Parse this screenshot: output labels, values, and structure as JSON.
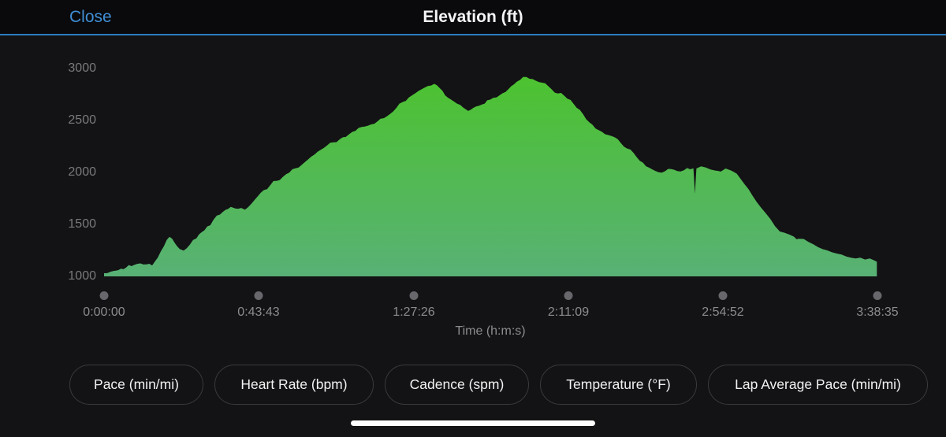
{
  "header": {
    "close_label": "Close",
    "title": "Elevation (ft)"
  },
  "buttons": [
    "Pace (min/mi)",
    "Heart Rate (bpm)",
    "Cadence (spm)",
    "Temperature (°F)",
    "Lap Average Pace (min/mi)"
  ],
  "chart_data": {
    "type": "area",
    "title": "Elevation (ft)",
    "xlabel": "Time (h:m:s)",
    "ylabel": "Elevation (ft)",
    "x_unit": "seconds",
    "xlim": [
      0,
      13115
    ],
    "ylim": [
      1000,
      3000
    ],
    "y_ticks": [
      1000,
      1500,
      2000,
      2500,
      3000
    ],
    "y_tick_labels": [
      "3000",
      "2500",
      "2000",
      "1500",
      "1000"
    ],
    "x_ticks_seconds": [
      0,
      2623,
      5246,
      7869,
      10492,
      13115
    ],
    "x_tick_labels": [
      "0:00:00",
      "0:43:43",
      "1:27:26",
      "2:11:09",
      "2:54:52",
      "3:38:35"
    ],
    "grid": false,
    "legend": false,
    "gradient": {
      "top": "#4cc32d",
      "bottom": "#58b175"
    },
    "points": [
      [
        0,
        1030
      ],
      [
        110,
        1045
      ],
      [
        240,
        1060
      ],
      [
        375,
        1085
      ],
      [
        510,
        1110
      ],
      [
        615,
        1125
      ],
      [
        720,
        1115
      ],
      [
        815,
        1105
      ],
      [
        910,
        1180
      ],
      [
        1015,
        1290
      ],
      [
        1110,
        1380
      ],
      [
        1200,
        1320
      ],
      [
        1285,
        1262
      ],
      [
        1350,
        1248
      ],
      [
        1455,
        1305
      ],
      [
        1565,
        1365
      ],
      [
        1655,
        1425
      ],
      [
        1750,
        1480
      ],
      [
        1855,
        1545
      ],
      [
        1965,
        1595
      ],
      [
        2060,
        1640
      ],
      [
        2150,
        1668
      ],
      [
        2230,
        1652
      ],
      [
        2325,
        1658
      ],
      [
        2390,
        1642
      ],
      [
        2500,
        1700
      ],
      [
        2605,
        1770
      ],
      [
        2710,
        1830
      ],
      [
        2820,
        1878
      ],
      [
        2925,
        1918
      ],
      [
        3035,
        1958
      ],
      [
        3140,
        1998
      ],
      [
        3245,
        2040
      ],
      [
        3355,
        2075
      ],
      [
        3460,
        2125
      ],
      [
        3570,
        2172
      ],
      [
        3675,
        2218
      ],
      [
        3780,
        2258
      ],
      [
        3890,
        2290
      ],
      [
        3995,
        2318
      ],
      [
        4100,
        2342
      ],
      [
        4210,
        2390
      ],
      [
        4315,
        2428
      ],
      [
        4420,
        2442
      ],
      [
        4530,
        2462
      ],
      [
        4635,
        2490
      ],
      [
        4745,
        2522
      ],
      [
        4850,
        2562
      ],
      [
        4955,
        2620
      ],
      [
        5065,
        2678
      ],
      [
        5170,
        2722
      ],
      [
        5280,
        2762
      ],
      [
        5385,
        2800
      ],
      [
        5490,
        2832
      ],
      [
        5600,
        2852
      ],
      [
        5690,
        2812
      ],
      [
        5785,
        2742
      ],
      [
        5880,
        2702
      ],
      [
        5985,
        2662
      ],
      [
        6095,
        2622
      ],
      [
        6175,
        2592
      ],
      [
        6265,
        2622
      ],
      [
        6360,
        2642
      ],
      [
        6455,
        2662
      ],
      [
        6545,
        2700
      ],
      [
        6655,
        2722
      ],
      [
        6760,
        2762
      ],
      [
        6855,
        2800
      ],
      [
        6950,
        2848
      ],
      [
        7055,
        2890
      ],
      [
        7160,
        2918
      ],
      [
        7270,
        2898
      ],
      [
        7375,
        2870
      ],
      [
        7480,
        2858
      ],
      [
        7590,
        2800
      ],
      [
        7695,
        2760
      ],
      [
        7805,
        2738
      ],
      [
        7910,
        2698
      ],
      [
        8015,
        2622
      ],
      [
        8125,
        2560
      ],
      [
        8230,
        2482
      ],
      [
        8335,
        2422
      ],
      [
        8445,
        2390
      ],
      [
        8550,
        2360
      ],
      [
        8660,
        2338
      ],
      [
        8765,
        2282
      ],
      [
        8870,
        2230
      ],
      [
        8980,
        2188
      ],
      [
        9085,
        2112
      ],
      [
        9190,
        2060
      ],
      [
        9300,
        2028
      ],
      [
        9405,
        2002
      ],
      [
        9515,
        2012
      ],
      [
        9620,
        2032
      ],
      [
        9725,
        2012
      ],
      [
        9835,
        2022
      ],
      [
        9940,
        2030
      ],
      [
        9995,
        2040
      ],
      [
        10020,
        1795
      ],
      [
        10045,
        2038
      ],
      [
        10125,
        2058
      ],
      [
        10205,
        2048
      ],
      [
        10285,
        2028
      ],
      [
        10365,
        2018
      ],
      [
        10460,
        2008
      ],
      [
        10540,
        2038
      ],
      [
        10635,
        2018
      ],
      [
        10730,
        1988
      ],
      [
        10795,
        1938
      ],
      [
        10860,
        1888
      ],
      [
        10930,
        1838
      ],
      [
        10995,
        1778
      ],
      [
        11060,
        1722
      ],
      [
        11140,
        1662
      ],
      [
        11220,
        1608
      ],
      [
        11300,
        1552
      ],
      [
        11380,
        1482
      ],
      [
        11460,
        1432
      ],
      [
        11540,
        1420
      ],
      [
        11620,
        1402
      ],
      [
        11700,
        1382
      ],
      [
        11785,
        1362
      ],
      [
        11865,
        1360
      ],
      [
        11945,
        1332
      ],
      [
        12025,
        1310
      ],
      [
        12105,
        1282
      ],
      [
        12185,
        1262
      ],
      [
        12265,
        1250
      ],
      [
        12345,
        1232
      ],
      [
        12425,
        1220
      ],
      [
        12505,
        1210
      ],
      [
        12585,
        1192
      ],
      [
        12665,
        1180
      ],
      [
        12745,
        1172
      ],
      [
        12825,
        1180
      ],
      [
        12905,
        1162
      ],
      [
        12985,
        1172
      ],
      [
        13065,
        1152
      ],
      [
        13105,
        1140
      ]
    ]
  },
  "colors": {
    "accent_blue": "#3f8ed5",
    "header_divider": "#2b7cc0"
  }
}
